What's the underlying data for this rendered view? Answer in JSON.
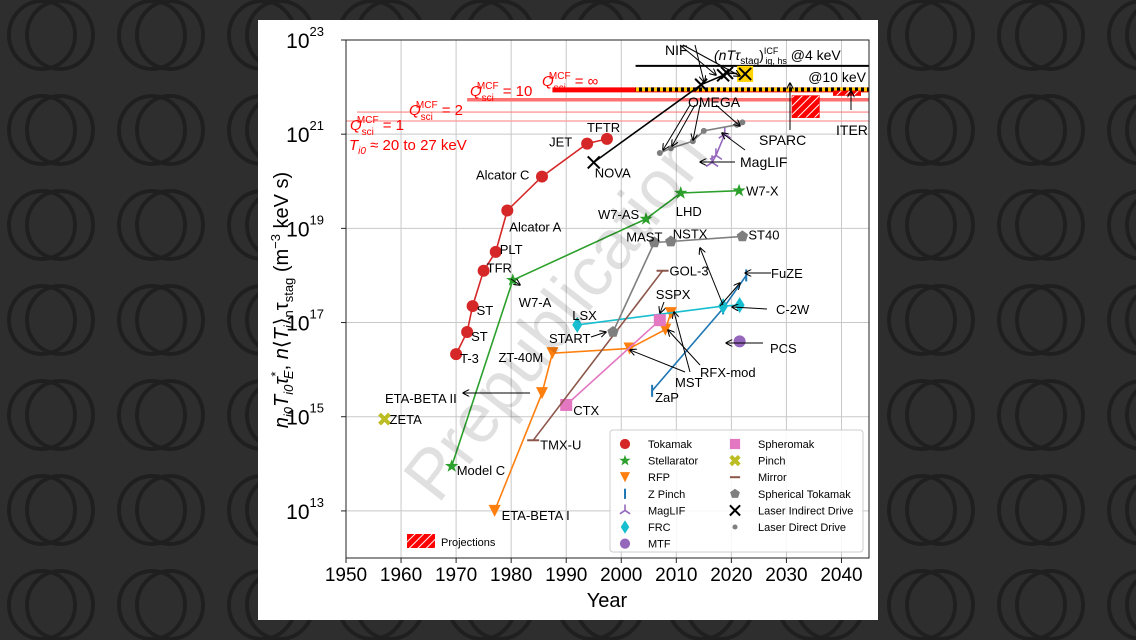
{
  "chart_data": {
    "type": "scatter",
    "title": "",
    "xlabel": "Year",
    "ylabel": "n_i0 T_i0 τ*_E ,  n⟨T_i⟩_n τ_stag (m^-3 keV s)",
    "xlim": [
      1950,
      2045
    ],
    "ylim_log10": [
      12,
      23
    ],
    "yscale": "log",
    "grid": true,
    "xticks": [
      1950,
      1960,
      1970,
      1980,
      1990,
      2000,
      2010,
      2020,
      2030,
      2040
    ],
    "yticks": [
      {
        "base": "10",
        "exp": "13",
        "v": 13
      },
      {
        "base": "10",
        "exp": "15",
        "v": 15
      },
      {
        "base": "10",
        "exp": "17",
        "v": 17
      },
      {
        "base": "10",
        "exp": "19",
        "v": 19
      },
      {
        "base": "10",
        "exp": "21",
        "v": 21
      },
      {
        "base": "10",
        "exp": "23",
        "v": 23
      }
    ],
    "watermark": "Prepublication",
    "series": [
      {
        "name": "Tokamak",
        "color": "#d62728",
        "marker": "circle",
        "points": [
          {
            "x": 1970,
            "y": 16.33,
            "label": "T-3"
          },
          {
            "x": 1972,
            "y": 16.8,
            "label": "ST"
          },
          {
            "x": 1973,
            "y": 17.35,
            "label": "ST"
          },
          {
            "x": 1975,
            "y": 18.1,
            "label": "TFR"
          },
          {
            "x": 1977.2,
            "y": 18.5,
            "label": "PLT"
          },
          {
            "x": 1979.3,
            "y": 19.38,
            "label": "Alcator A"
          },
          {
            "x": 1985.6,
            "y": 20.1,
            "label": "Alcator C"
          },
          {
            "x": 1993.8,
            "y": 20.8,
            "label": "JET"
          },
          {
            "x": 1997.4,
            "y": 20.9,
            "label": "TFTR"
          }
        ]
      },
      {
        "name": "Stellarator",
        "color": "#2ca02c",
        "marker": "star",
        "points": [
          {
            "x": 1969.2,
            "y": 13.95,
            "label": "Model C"
          },
          {
            "x": 1980.3,
            "y": 17.9,
            "label": "W7-A"
          },
          {
            "x": 2004.5,
            "y": 19.2,
            "label": "W7-AS"
          },
          {
            "x": 2010.8,
            "y": 19.75,
            "label": "LHD"
          },
          {
            "x": 2021.4,
            "y": 19.8,
            "label": "W7-X"
          }
        ]
      },
      {
        "name": "RFP",
        "color": "#ff7f0e",
        "marker": "triangle-down",
        "points": [
          {
            "x": 1977,
            "y": 13.0,
            "label": "ETA-BETA I"
          },
          {
            "x": 1985.6,
            "y": 15.5,
            "label": "ETA-BETA II"
          },
          {
            "x": 1987.5,
            "y": 16.35,
            "label": "ZT-40M"
          },
          {
            "x": 2001.5,
            "y": 16.45,
            "label": "MST"
          },
          {
            "x": 2008,
            "y": 16.85,
            "label": "RFX-mod"
          },
          {
            "x": 2009,
            "y": 17.2,
            "label": ""
          }
        ]
      },
      {
        "name": "Z Pinch",
        "color": "#1f77b4",
        "marker": "vline",
        "points": [
          {
            "x": 2005.6,
            "y": 15.55,
            "label": "ZaP"
          },
          {
            "x": 2018.5,
            "y": 17.3,
            "label": ""
          },
          {
            "x": 2022.7,
            "y": 18.0,
            "label": "FuZE"
          }
        ]
      },
      {
        "name": "MagLIF",
        "color": "#9467bd",
        "marker": "tri",
        "points": [
          {
            "x": 2016.5,
            "y": 20.4,
            "label": "MagLIF"
          },
          {
            "x": 2017.2,
            "y": 20.55,
            "label": ""
          },
          {
            "x": 2018.8,
            "y": 21.0,
            "label": ""
          }
        ]
      },
      {
        "name": "FRC",
        "color": "#17becf",
        "marker": "diamond",
        "points": [
          {
            "x": 1992,
            "y": 16.95,
            "label": "LSX"
          },
          {
            "x": 2018.5,
            "y": 17.35,
            "label": ""
          },
          {
            "x": 2021.5,
            "y": 17.37,
            "label": "C-2W"
          }
        ]
      },
      {
        "name": "MTF",
        "color": "#9467bd",
        "marker": "circle",
        "points": [
          {
            "x": 2021.5,
            "y": 16.6,
            "label": "PCS"
          }
        ]
      },
      {
        "name": "Spheromak",
        "color": "#e377c2",
        "marker": "square",
        "points": [
          {
            "x": 1990,
            "y": 15.25,
            "label": "CTX"
          },
          {
            "x": 2007,
            "y": 17.05,
            "label": "SSPX"
          }
        ]
      },
      {
        "name": "Pinch",
        "color": "#bcbd22",
        "marker": "x-thick",
        "points": [
          {
            "x": 1957,
            "y": 14.95,
            "label": "ZETA"
          }
        ]
      },
      {
        "name": "Mirror",
        "color": "#8c564b",
        "marker": "hline",
        "points": [
          {
            "x": 1984,
            "y": 14.5,
            "label": "TMX-U"
          },
          {
            "x": 2007.5,
            "y": 18.1,
            "label": "GOL-3"
          }
        ]
      },
      {
        "name": "Spherical Tokamak",
        "color": "#7f7f7f",
        "marker": "pentagon",
        "points": [
          {
            "x": 1998.5,
            "y": 16.8,
            "label": "START"
          },
          {
            "x": 2006,
            "y": 18.7,
            "label": "MAST"
          },
          {
            "x": 2009,
            "y": 18.72,
            "label": "NSTX"
          },
          {
            "x": 2022,
            "y": 18.83,
            "label": "ST40"
          }
        ]
      },
      {
        "name": "Laser Indirect Drive",
        "color": "#000000",
        "marker": "x",
        "points": [
          {
            "x": 1995,
            "y": 20.4,
            "label": "NOVA"
          },
          {
            "x": 2014.5,
            "y": 22.05,
            "label": ""
          },
          {
            "x": 2018.5,
            "y": 22.25,
            "label": ""
          },
          {
            "x": 2019.2,
            "y": 22.3,
            "label": ""
          },
          {
            "x": 2022.5,
            "y": 22.28,
            "label": "NIF"
          }
        ]
      },
      {
        "name": "Laser Direct Drive",
        "color": "#7f7f7f",
        "marker": "dot",
        "points": [
          {
            "x": 2007,
            "y": 20.6,
            "label": ""
          },
          {
            "x": 2009,
            "y": 20.7,
            "label": ""
          },
          {
            "x": 2013,
            "y": 20.85,
            "label": ""
          },
          {
            "x": 2015,
            "y": 21.07,
            "label": ""
          },
          {
            "x": 2021,
            "y": 21.2,
            "label": ""
          },
          {
            "x": 2022,
            "y": 21.25,
            "label": "OMEGA"
          }
        ]
      }
    ],
    "reference_lines": [
      {
        "name": "Q_sci^MCF = 1",
        "color": "#ff9999",
        "x0": 1950,
        "x1": 2045,
        "y": 21.28,
        "width": 1.2
      },
      {
        "name": "Q_sci^MCF = 2",
        "color": "#ff8080",
        "x0": 1952,
        "x1": 2045,
        "y": 21.47,
        "width": 1.2
      },
      {
        "name": "Q_sci^MCF = 10",
        "color": "#ff7070",
        "x0": 1972,
        "x1": 2045,
        "y": 21.73,
        "width": 3.5
      },
      {
        "name": "Q_sci^MCF = ∞",
        "color": "#ff0000",
        "x0": 1987.5,
        "x1": 2045,
        "y": 21.94,
        "width": 5
      },
      {
        "name": "(nTτ_stag)^ICF_ig,hs @4 keV",
        "color": "#000000",
        "x0": 2002.6,
        "x1": 2045,
        "y": 22.45,
        "width": 2
      },
      {
        "name": "@10 keV",
        "color": "#000000",
        "x0": 2002.6,
        "x1": 2045,
        "y": 21.95,
        "width": 2.5,
        "dotted": true
      }
    ],
    "projections": [
      {
        "name": "SPARC",
        "x0": 2031,
        "x1": 2036,
        "y0": 21.35,
        "y1": 21.82
      },
      {
        "name": "ITER",
        "x0": 2038.5,
        "x1": 2043.5,
        "y0": 21.82,
        "y1": 21.92
      }
    ],
    "annotations": {
      "q1": "Q",
      "q1_sup": "MCF",
      "q1_sub": "sci",
      "q1_val": " = 1",
      "q2_val": " = 2",
      "q10_val": " = 10",
      "qinf_val": " = ∞",
      "ti_range": "T",
      "ti_sub": "i0",
      "ti_text": " ≈ 20 to 27 keV",
      "icf_label_a": "(nTτ",
      "icf_label_b": "stag",
      "icf_label_c": ")",
      "icf_sup": "ICF",
      "icf_sub": "ig, hs",
      "icf_at": " @4 keV",
      "at10": "@10 keV",
      "nif": "NIF",
      "omega": "OMEGA",
      "sparc": "SPARC",
      "iter": "ITER",
      "maglif": "MagLIF",
      "nova": "NOVA"
    },
    "legend": {
      "placement": "lower-right",
      "col1": [
        "Tokamak",
        "Stellarator",
        "RFP",
        "Z Pinch",
        "MagLIF",
        "FRC",
        "MTF"
      ],
      "col2": [
        "Spheromak",
        "Pinch",
        "Mirror",
        "Spherical Tokamak",
        "Laser Indirect Drive",
        "Laser Direct Drive"
      ],
      "projections_label": "Projections"
    }
  }
}
